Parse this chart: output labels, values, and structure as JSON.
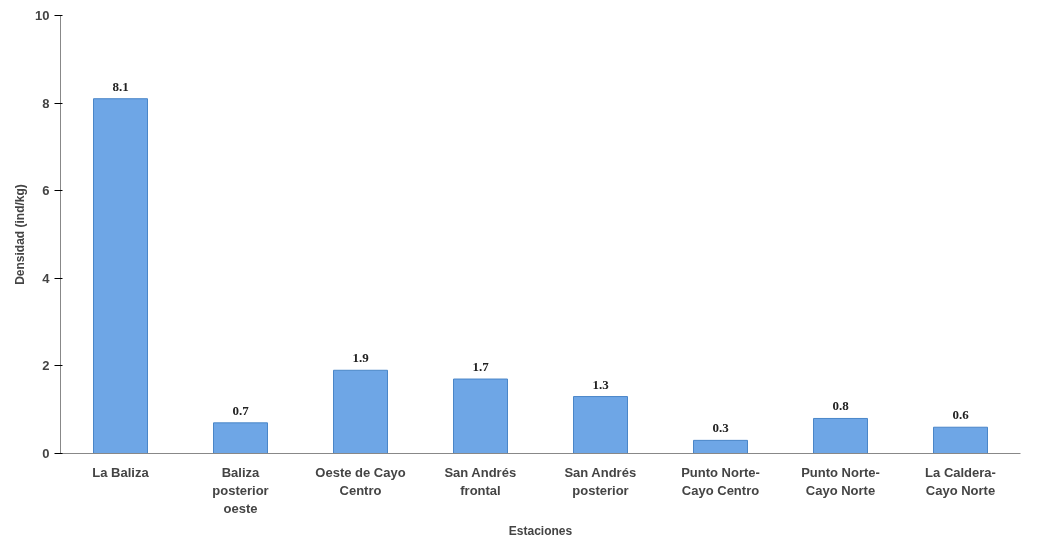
{
  "chart_data": {
    "type": "bar",
    "xlabel": "Estaciones",
    "ylabel": "Densidad (ind/kg)",
    "categories": [
      "La Baliza",
      "Baliza posterior oeste",
      "Oeste de Cayo Centro",
      "San Andrés frontal",
      "San Andrés posterior",
      "Punto Norte-Cayo Centro",
      "Punto Norte-Cayo Norte",
      "La Caldera-Cayo Norte"
    ],
    "values": [
      8.1,
      0.7,
      1.9,
      1.7,
      1.3,
      0.3,
      0.8,
      0.6
    ],
    "color": "#6ea6e6",
    "ylim": [
      0,
      10
    ],
    "yticks": [
      0,
      2,
      4,
      6,
      8,
      10
    ],
    "grid": false,
    "data_labels": true
  }
}
